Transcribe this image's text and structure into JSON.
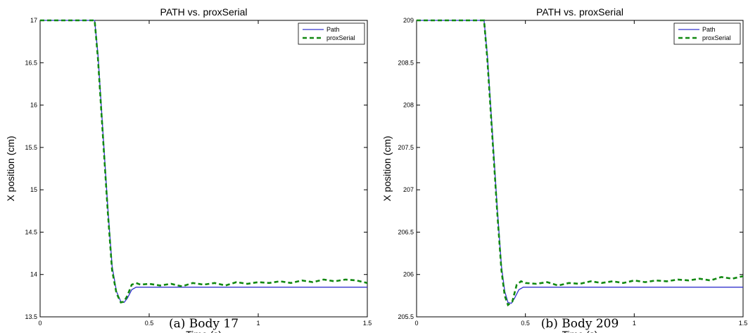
{
  "chart_data": [
    {
      "type": "line",
      "title": "PATH vs. proxSerial",
      "xlabel": "Time (s)",
      "ylabel": "X position (cm)",
      "caption": "(a) Body 17",
      "xlim": [
        0,
        1.5
      ],
      "ylim": [
        13.5,
        17
      ],
      "xticks": [
        "0",
        "0.5",
        "1",
        "1.5"
      ],
      "yticks": [
        "13.5",
        "14",
        "14.5",
        "15",
        "15.5",
        "16",
        "16.5",
        "17"
      ],
      "legend_position": "top-right",
      "grid": false,
      "series": [
        {
          "name": "Path",
          "color": "#3333cc",
          "style": "solid",
          "x": [
            0,
            0.25,
            0.265,
            0.29,
            0.31,
            0.33,
            0.35,
            0.37,
            0.385,
            0.4,
            0.42,
            0.44,
            0.45,
            0.6,
            1.0,
            1.5
          ],
          "y": [
            17,
            17,
            16.6,
            15.6,
            14.8,
            14.1,
            13.8,
            13.68,
            13.67,
            13.72,
            13.82,
            13.85,
            13.85,
            13.85,
            13.85,
            13.85
          ]
        },
        {
          "name": "proxSerial",
          "color": "#118811",
          "style": "dashed",
          "x": [
            0,
            0.25,
            0.265,
            0.29,
            0.31,
            0.33,
            0.35,
            0.37,
            0.385,
            0.4,
            0.42,
            0.44,
            0.46,
            0.5,
            0.55,
            0.6,
            0.65,
            0.7,
            0.75,
            0.8,
            0.85,
            0.9,
            0.95,
            1.0,
            1.05,
            1.1,
            1.15,
            1.2,
            1.25,
            1.3,
            1.35,
            1.4,
            1.45,
            1.5
          ],
          "y": [
            17,
            17,
            16.55,
            15.55,
            14.75,
            14.05,
            13.78,
            13.67,
            13.68,
            13.75,
            13.88,
            13.9,
            13.88,
            13.89,
            13.87,
            13.89,
            13.86,
            13.9,
            13.88,
            13.9,
            13.87,
            13.91,
            13.89,
            13.91,
            13.9,
            13.92,
            13.9,
            13.93,
            13.91,
            13.94,
            13.92,
            13.94,
            13.93,
            13.9
          ]
        }
      ]
    },
    {
      "type": "line",
      "title": "PATH vs. proxSerial",
      "xlabel": "Time (s)",
      "ylabel": "X position (cm)",
      "caption": "(b) Body 209",
      "xlim": [
        0,
        1.5
      ],
      "ylim": [
        205.5,
        209
      ],
      "xticks": [
        "0",
        "0.5",
        "1",
        "1.5"
      ],
      "yticks": [
        "205.5",
        "206",
        "206.5",
        "207",
        "207.5",
        "208",
        "208.5",
        "209"
      ],
      "legend_position": "top-right",
      "grid": false,
      "series": [
        {
          "name": "Path",
          "color": "#3333cc",
          "style": "solid",
          "x": [
            0,
            0.31,
            0.325,
            0.35,
            0.37,
            0.39,
            0.405,
            0.42,
            0.435,
            0.45,
            0.47,
            0.49,
            0.6,
            1.0,
            1.5
          ],
          "y": [
            209,
            209,
            208.6,
            207.6,
            206.8,
            206.1,
            205.8,
            205.67,
            205.66,
            205.72,
            205.82,
            205.85,
            205.85,
            205.85,
            205.85
          ]
        },
        {
          "name": "proxSerial",
          "color": "#118811",
          "style": "dashed",
          "x": [
            0,
            0.31,
            0.325,
            0.35,
            0.37,
            0.39,
            0.405,
            0.42,
            0.44,
            0.46,
            0.48,
            0.5,
            0.55,
            0.6,
            0.65,
            0.7,
            0.75,
            0.8,
            0.85,
            0.9,
            0.95,
            1.0,
            1.05,
            1.1,
            1.15,
            1.2,
            1.25,
            1.3,
            1.35,
            1.4,
            1.45,
            1.5
          ],
          "y": [
            209,
            209,
            208.55,
            207.55,
            206.75,
            206.05,
            205.75,
            205.64,
            205.68,
            205.88,
            205.92,
            205.9,
            205.89,
            205.91,
            205.87,
            205.9,
            205.89,
            205.92,
            205.9,
            205.92,
            205.9,
            205.93,
            205.91,
            205.93,
            205.92,
            205.94,
            205.93,
            205.95,
            205.93,
            205.97,
            205.95,
            205.98
          ]
        }
      ]
    }
  ]
}
